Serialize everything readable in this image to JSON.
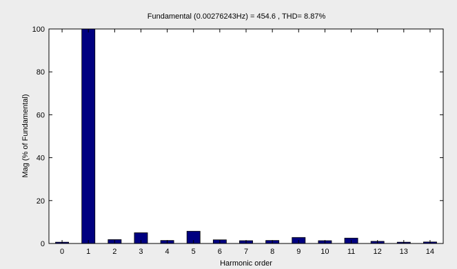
{
  "chart_data": {
    "type": "bar",
    "title": "Fundamental (0.00276243Hz) = 454.6 , THD= 8.87%",
    "xlabel": "Harmonic order",
    "ylabel": "Mag (% of Fundamental)",
    "categories": [
      "0",
      "1",
      "2",
      "3",
      "4",
      "5",
      "6",
      "7",
      "8",
      "9",
      "10",
      "11",
      "12",
      "13",
      "14"
    ],
    "values": [
      0.6,
      100,
      1.8,
      5.0,
      1.4,
      5.7,
      1.7,
      1.3,
      1.4,
      2.8,
      1.3,
      2.5,
      1.0,
      0.6,
      0.7
    ],
    "ylim": [
      0,
      100
    ],
    "yticks": [
      "0",
      "20",
      "40",
      "60",
      "80",
      "100"
    ],
    "grid": false,
    "bar_color": "#000080",
    "background_color": "#ededed",
    "axes_color": "#ffffff"
  }
}
